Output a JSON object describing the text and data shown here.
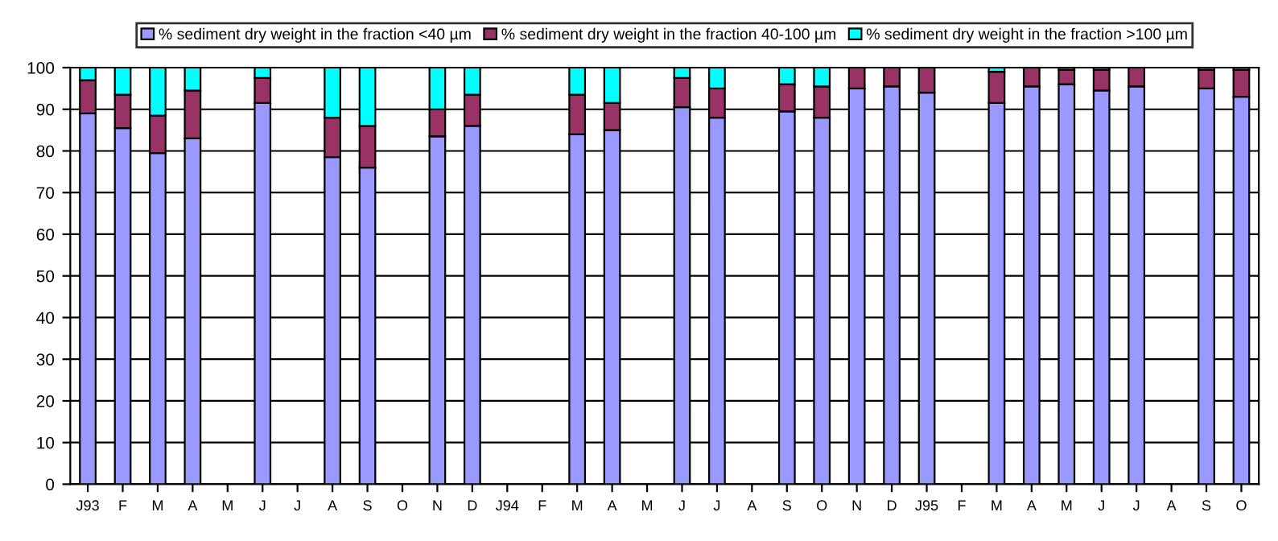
{
  "chart_data": {
    "type": "bar",
    "stacked": true,
    "categories": [
      "J93",
      "F",
      "M",
      "A",
      "M",
      "J",
      "J",
      "A",
      "S",
      "O",
      "N",
      "D",
      "J94",
      "F",
      "M",
      "A",
      "M",
      "J",
      "J",
      "A",
      "S",
      "O",
      "N",
      "D",
      "J95",
      "F",
      "M",
      "A",
      "M",
      "J",
      "J",
      "A",
      "S",
      "O"
    ],
    "series": [
      {
        "name": "% sediment dry weight in the fraction <40 µm",
        "color": "#9999ff",
        "values": [
          89,
          85.5,
          79.5,
          83,
          null,
          91.5,
          null,
          78.5,
          76,
          null,
          83.5,
          86,
          null,
          null,
          84,
          85,
          null,
          90.5,
          88,
          null,
          89.5,
          88,
          95,
          95.5,
          94,
          null,
          91.5,
          95.5,
          96,
          94.5,
          95.5,
          null,
          95,
          93
        ]
      },
      {
        "name": "% sediment dry weight in the fraction 40-100 µm",
        "color": "#993366",
        "values": [
          8,
          8,
          9,
          11.5,
          null,
          6,
          null,
          9.5,
          10,
          null,
          6.5,
          7.5,
          null,
          null,
          9.5,
          6.5,
          null,
          7,
          7,
          null,
          6.5,
          7.5,
          5,
          4.5,
          6,
          null,
          7.5,
          4.5,
          3.5,
          5,
          4.5,
          null,
          4.5,
          6.5
        ]
      },
      {
        "name": "% sediment dry weight in the fraction >100 µm",
        "color": "#00ffff",
        "values": [
          3,
          6.5,
          11.5,
          5.5,
          null,
          2.5,
          null,
          12,
          14,
          null,
          10,
          6.5,
          null,
          null,
          6.5,
          8.5,
          null,
          2.5,
          5,
          null,
          4,
          4.5,
          0,
          0,
          0,
          null,
          1,
          0,
          0.5,
          0.5,
          0,
          null,
          0.5,
          0.5
        ]
      }
    ],
    "ylim": [
      0,
      100
    ],
    "yticks": [
      0,
      10,
      20,
      30,
      40,
      50,
      60,
      70,
      80,
      90,
      100
    ],
    "grid": "y",
    "legend": "top"
  }
}
